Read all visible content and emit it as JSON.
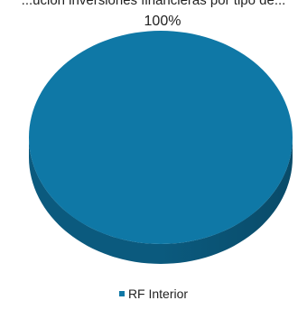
{
  "chart_data": {
    "type": "pie",
    "title": "...ución inversiones financieras por tipo de...",
    "slices": [
      {
        "label": "RF Interior",
        "value": 100,
        "data_label": "100%",
        "color": "#0f78a6"
      }
    ],
    "legend_position": "bottom",
    "colors": {
      "top_face": "#0f78a6",
      "side_face": "#0b5a7e",
      "side_face_dark": "#094b69"
    }
  }
}
